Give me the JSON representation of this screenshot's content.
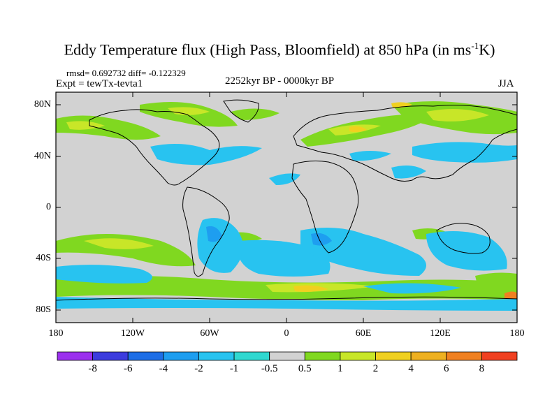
{
  "title": {
    "main": "Eddy Temperature flux (High Pass, Bloomfield) at 850 hPa (in ms",
    "sup": "-1",
    "tail": "K)"
  },
  "stats": "rmsd= 0.692732 diff= -0.122329",
  "experiment": "Expt = tewTx-tevta1",
  "period": "2252kyr BP - 0000kyr BP",
  "season": "JJA",
  "axes": {
    "y_ticks": [
      "80N",
      "40N",
      "0",
      "40S",
      "80S"
    ],
    "x_ticks": [
      "180",
      "120W",
      "60W",
      "0",
      "60E",
      "120E",
      "180"
    ]
  },
  "colorbar": {
    "labels": [
      "-8",
      "-6",
      "-4",
      "-2",
      "-1",
      "-0.5",
      "0.5",
      "1",
      "2",
      "4",
      "6",
      "8"
    ],
    "colors": [
      "#9b30ee",
      "#3c3cde",
      "#1e6ee6",
      "#1e9ef0",
      "#28c3f0",
      "#30d8d0",
      "#d2d2d2",
      "#80d820",
      "#c8e628",
      "#f0d020",
      "#eeb020",
      "#f08020",
      "#f04020"
    ]
  },
  "colors": {
    "ocean_background": "#d2d2d2",
    "coastline": "#000000"
  }
}
